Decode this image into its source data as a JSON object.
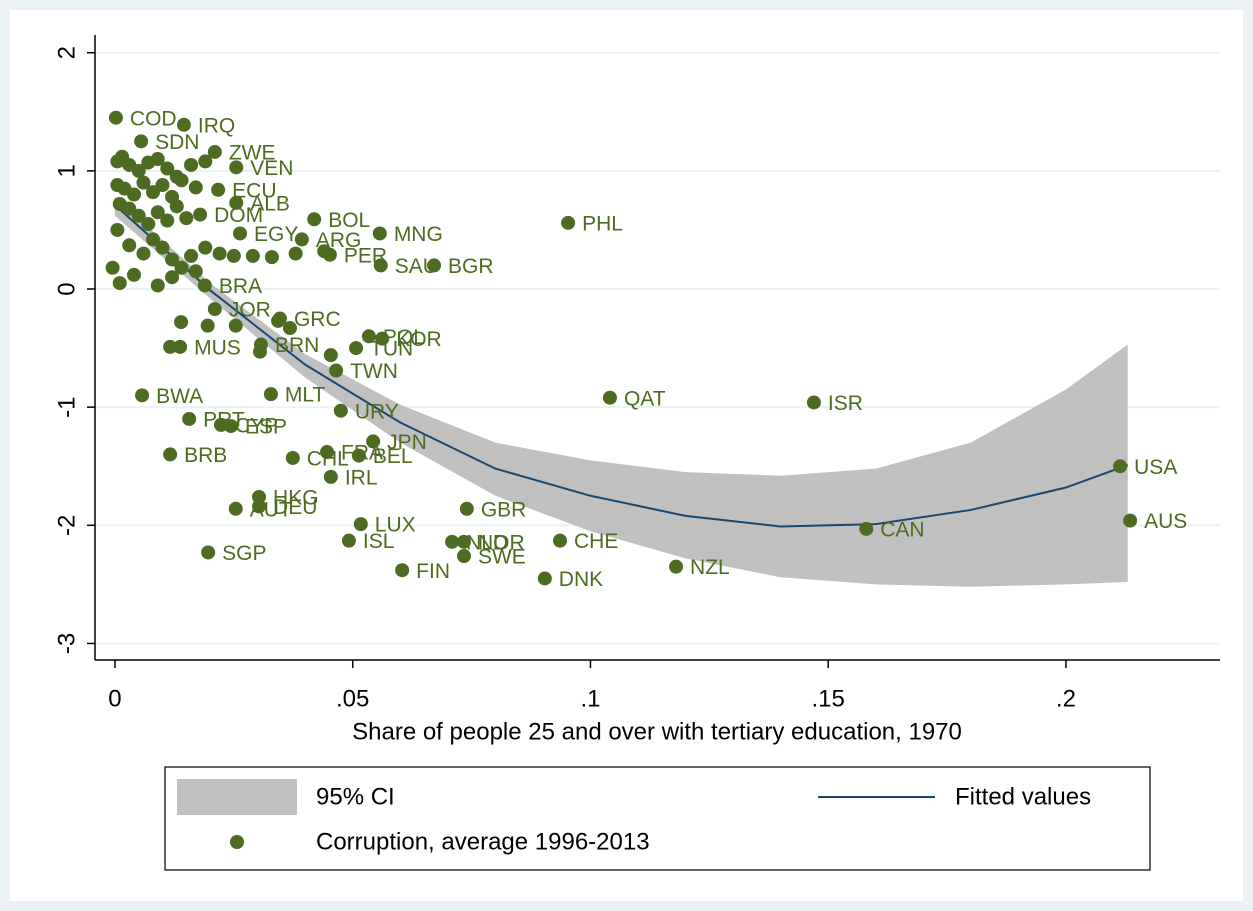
{
  "chart_data": {
    "type": "scatter",
    "xlabel": "Share of people 25 and over with tertiary education, 1970",
    "xlim": [
      -0.0042,
      0.2324
    ],
    "ylim": [
      -3.14,
      2.15
    ],
    "xticks": [
      0,
      {
        "value": 0.05,
        "label": ".05"
      },
      {
        "value": 0.1,
        "label": ".1"
      },
      {
        "value": 0.15,
        "label": ".15"
      },
      {
        "value": 0.2,
        "label": ".2"
      }
    ],
    "yticks": [
      -3,
      -2,
      -1,
      0,
      1,
      2
    ],
    "grid": true,
    "ci": {
      "name": "95% CI",
      "color": "#c0c0c0",
      "x": [
        0,
        0.02,
        0.04,
        0.06,
        0.08,
        0.1,
        0.12,
        0.14,
        0.16,
        0.18,
        0.2,
        0.213
      ],
      "upper": [
        0.78,
        0.05,
        -0.55,
        -0.98,
        -1.3,
        -1.45,
        -1.55,
        -1.58,
        -1.52,
        -1.3,
        -0.85,
        -0.47
      ],
      "lower": [
        0.62,
        -0.08,
        -0.75,
        -1.3,
        -1.75,
        -2.05,
        -2.28,
        -2.44,
        -2.5,
        -2.52,
        -2.5,
        -2.48
      ]
    },
    "fit": {
      "name": "Fitted values",
      "color": "#1a476f",
      "x": [
        0,
        0.02,
        0.04,
        0.06,
        0.08,
        0.1,
        0.12,
        0.14,
        0.16,
        0.18,
        0.2,
        0.213
      ],
      "values": [
        0.71,
        -0.01,
        -0.64,
        -1.13,
        -1.52,
        -1.75,
        -1.92,
        -2.01,
        -1.99,
        -1.87,
        -1.68,
        -1.49
      ]
    },
    "points": {
      "name": "Corruption, average 1996-2013",
      "color": "#4e6b22",
      "labels": [
        "COD",
        "IRQ",
        "SDN",
        "ZWE",
        "VEN",
        "ECU",
        "ALB",
        "PHL",
        "BOL",
        "MNG",
        "DOM",
        "EGY",
        "ARG",
        "PER",
        "SAU",
        "BGR",
        "BRA",
        "JOR",
        "GRC",
        "POL",
        "KOR",
        "TUN",
        "TWN",
        "BRN",
        "MUS",
        "BWA",
        "MLT",
        "QAT",
        "ISR",
        "URY",
        "PRT",
        "CYP",
        "ESP",
        "JPN",
        "BRB",
        "CHL",
        "FRA",
        "BEL",
        "IRL",
        "USA",
        "HKG",
        "AUT",
        "DEU",
        "GBR",
        "AUS",
        "LUX",
        "CAN",
        "ISL",
        "CHE",
        "NLD",
        "NOR",
        "SWE",
        "SGP",
        "FIN",
        "DNK",
        "NZL",
        null,
        null,
        null,
        null,
        null,
        null,
        null,
        null,
        null,
        null,
        null,
        null,
        null,
        null,
        null,
        null,
        null,
        null,
        null,
        null,
        null,
        null,
        null,
        null,
        null,
        null,
        null,
        null,
        null,
        null,
        null,
        null,
        null,
        null,
        null,
        null,
        null,
        null,
        null,
        null,
        null,
        null,
        null,
        null,
        null,
        null,
        null,
        null,
        null,
        null,
        null,
        null,
        null,
        null,
        null,
        null
      ],
      "x": [
        0.0002,
        0.0145,
        0.0055,
        0.021,
        0.0255,
        0.0217,
        0.0255,
        0.0953,
        0.0419,
        0.0557,
        0.0179,
        0.0263,
        0.0393,
        0.0452,
        0.0559,
        0.0671,
        0.0189,
        0.021,
        0.0347,
        0.0534,
        0.0562,
        0.0507,
        0.0465,
        0.0307,
        0.0137,
        0.0057,
        0.0328,
        0.1041,
        0.147,
        0.0475,
        0.0156,
        0.0223,
        0.0244,
        0.0543,
        0.0116,
        0.0374,
        0.0446,
        0.0513,
        0.0454,
        0.2114,
        0.0303,
        0.0254,
        0.0303,
        0.074,
        0.2135,
        0.0517,
        0.158,
        0.0492,
        0.0936,
        0.0709,
        0.0734,
        0.0734,
        0.0196,
        0.0604,
        0.0904,
        0.118,
        0.0005,
        0.0015,
        0.003,
        0.005,
        0.007,
        0.009,
        0.011,
        0.013,
        0.016,
        0.019,
        0.0005,
        0.002,
        0.004,
        0.006,
        0.008,
        0.01,
        0.012,
        0.014,
        0.017,
        0.001,
        0.003,
        0.005,
        0.007,
        0.009,
        0.011,
        0.013,
        0.015,
        0.0005,
        0.003,
        0.006,
        0.008,
        0.01,
        0.012,
        0.014,
        0.016,
        0.019,
        0.022,
        0.025,
        -0.0005,
        0.001,
        0.004,
        0.009,
        0.012,
        0.017,
        0.029,
        0.033,
        0.038,
        0.044,
        0.0195,
        0.0139,
        0.0254,
        0.0368,
        0.0116,
        0.0305,
        0.0454,
        0.0343
      ],
      "values": [
        1.45,
        1.39,
        1.25,
        1.16,
        1.03,
        0.84,
        0.73,
        0.56,
        0.59,
        0.47,
        0.63,
        0.47,
        0.42,
        0.29,
        0.2,
        0.2,
        0.03,
        -0.17,
        -0.25,
        -0.4,
        -0.42,
        -0.5,
        -0.69,
        -0.47,
        -0.49,
        -0.9,
        -0.89,
        -0.92,
        -0.96,
        -1.03,
        -1.1,
        -1.15,
        -1.16,
        -1.29,
        -1.4,
        -1.43,
        -1.38,
        -1.41,
        -1.59,
        -1.5,
        -1.76,
        -1.86,
        -1.84,
        -1.86,
        -1.96,
        -1.99,
        -2.03,
        -2.13,
        -2.13,
        -2.14,
        -2.14,
        -2.26,
        -2.23,
        -2.38,
        -2.45,
        -2.35,
        1.08,
        1.12,
        1.05,
        1.0,
        1.07,
        1.1,
        1.02,
        0.95,
        1.05,
        1.08,
        0.88,
        0.85,
        0.8,
        0.9,
        0.82,
        0.88,
        0.78,
        0.92,
        0.86,
        0.72,
        0.68,
        0.62,
        0.55,
        0.65,
        0.58,
        0.7,
        0.6,
        0.5,
        0.37,
        0.3,
        0.42,
        0.35,
        0.25,
        0.18,
        0.28,
        0.35,
        0.3,
        0.28,
        0.18,
        0.05,
        0.12,
        0.03,
        0.1,
        0.15,
        0.28,
        0.27,
        0.3,
        0.32,
        -0.31,
        -0.28,
        -0.31,
        -0.33,
        -0.49,
        -0.53,
        -0.56,
        -0.27
      ]
    }
  }
}
